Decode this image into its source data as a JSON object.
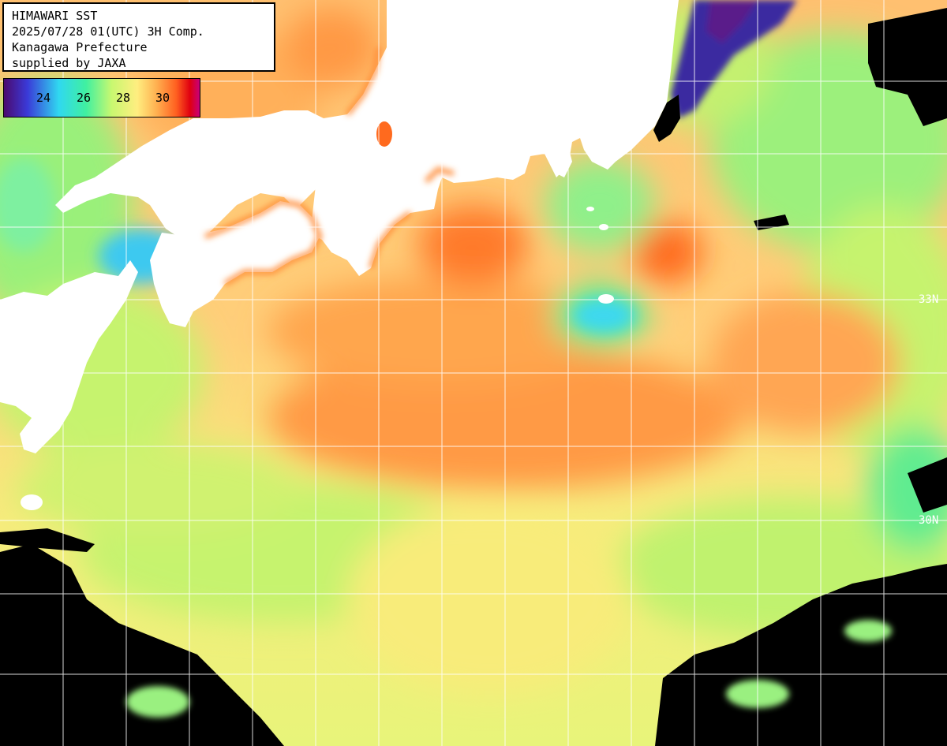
{
  "header": {
    "line1": "HIMAWARI SST",
    "line2": "2025/07/28 01(UTC) 3H Comp.",
    "line3": "Kanagawa Prefecture",
    "line4": "supplied by JAXA"
  },
  "legend": {
    "ticks": [
      "24",
      "26",
      "28",
      "30"
    ],
    "colors": [
      "#4b0a6e",
      "#3a3ad8",
      "#30d8f0",
      "#40f0a0",
      "#c8f870",
      "#ffee80",
      "#ffb050",
      "#ff6020",
      "#e00010",
      "#c8007a"
    ]
  },
  "grid": {
    "lat_labels": [
      "33N",
      "30N"
    ]
  },
  "palette": {
    "land": "#ffffff",
    "nodata": "#000000",
    "warm": "#ffa24a",
    "hot": "#ff6a1e",
    "mild": "#fde978",
    "cool": "#c6f36e",
    "cold": "#58f08e",
    "cyan": "#3ec9f0"
  }
}
